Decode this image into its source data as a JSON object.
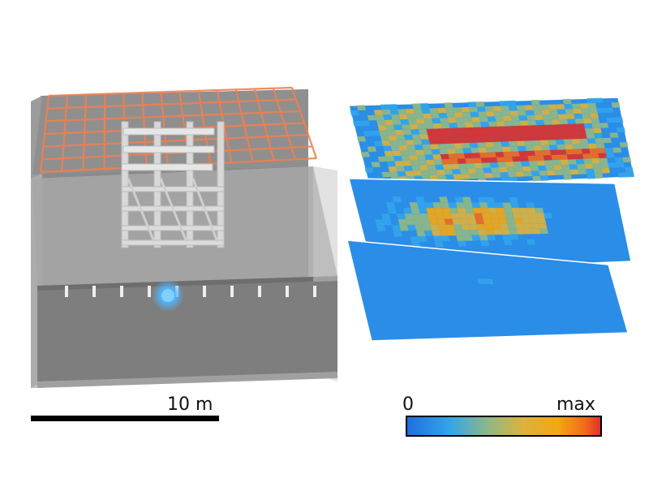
{
  "scale_bar": {
    "label": "10 m"
  },
  "colorbar": {
    "min_label": "0",
    "max_label": "max",
    "colormap": [
      "#1f6fe0",
      "#33a5ea",
      "#8fb886",
      "#dcb23c",
      "#f3a712",
      "#f36a1a",
      "#e0302a"
    ]
  },
  "colors": {
    "building_wall": "#8c8c8c",
    "floor_slab": "#a8a8a8",
    "scaffold": "#d9d9d9",
    "roof_grid": "#f08050",
    "source_glow": "#4fb6ff",
    "map_base": "#2a8de8"
  },
  "maps": [
    {
      "name": "top-layer-map",
      "pattern": "high"
    },
    {
      "name": "middle-layer-map",
      "pattern": "medium"
    },
    {
      "name": "bottom-layer-map",
      "pattern": "low"
    }
  ]
}
